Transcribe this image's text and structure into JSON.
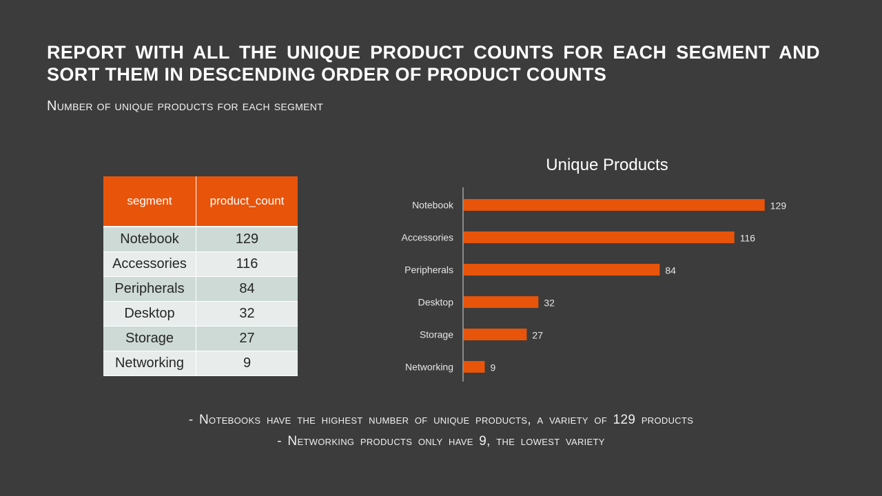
{
  "slide": {
    "title": "Report with all the unique product counts for each segment and sort them in descending order of product counts",
    "subtitle": "Number of unique products for each segment"
  },
  "table": {
    "headers": [
      "segment",
      "product_count"
    ],
    "rows": [
      [
        "Notebook",
        "129"
      ],
      [
        "Accessories",
        "116"
      ],
      [
        "Peripherals",
        "84"
      ],
      [
        "Desktop",
        "32"
      ],
      [
        "Storage",
        "27"
      ],
      [
        "Networking",
        "9"
      ]
    ]
  },
  "chart_data": {
    "type": "bar",
    "orientation": "horizontal",
    "title": "Unique Products",
    "categories": [
      "Notebook",
      "Accessories",
      "Peripherals",
      "Desktop",
      "Storage",
      "Networking"
    ],
    "values": [
      129,
      116,
      84,
      32,
      27,
      9
    ],
    "xlim": [
      0,
      140
    ],
    "grid": false,
    "data_labels": true,
    "bar_color": "#e8540a"
  },
  "findings": [
    "- Notebooks have the highest number of unique products, a variety of 129 products",
    "- Networking products only have 9, the lowest variety"
  ],
  "colors": {
    "background": "#3c3c3c",
    "accent": "#e8540a",
    "row_odd": "#cddad6",
    "row_even": "#e8edec"
  }
}
